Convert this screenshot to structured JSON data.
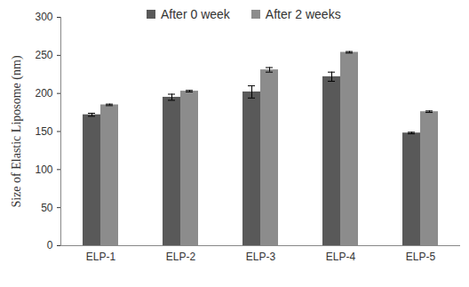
{
  "chart_data": {
    "type": "bar",
    "categories": [
      "ELP-1",
      "ELP-2",
      "ELP-3",
      "ELP-4",
      "ELP-5"
    ],
    "series": [
      {
        "name": "After 0 week",
        "color": "#595959",
        "values": [
          172,
          195,
          202,
          222,
          148
        ],
        "errors": [
          2,
          4,
          8,
          6,
          1
        ]
      },
      {
        "name": "After 2 weeks",
        "color": "#8c8c8c",
        "values": [
          185,
          203,
          231,
          254,
          176
        ],
        "errors": [
          1,
          1,
          3,
          1,
          1
        ]
      }
    ],
    "y_label": "Size of Elastic Liposome (nm)",
    "ylim": [
      0,
      300
    ],
    "yticks": [
      0,
      50,
      100,
      150,
      200,
      250,
      300
    ],
    "grid": false,
    "legend": "top"
  }
}
